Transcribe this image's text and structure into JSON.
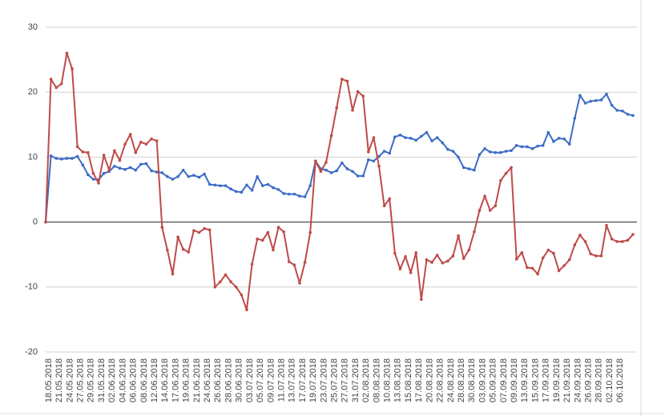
{
  "chart_data": {
    "type": "line",
    "categories": [
      "18.05.2018",
      null,
      "21.05.2018",
      null,
      "24.05.2018",
      null,
      "27.05.2018",
      null,
      "29.05.2018",
      null,
      "31.05.2018",
      null,
      "02.06.2018",
      null,
      "04.06.2018",
      null,
      "06.06.2018",
      null,
      "08.06.2018",
      null,
      "12.06.2018",
      null,
      "14.06.2018",
      null,
      "17.06.2018",
      null,
      "19.06.2018",
      null,
      "21.06.2018",
      null,
      "24.06.2018",
      null,
      "26.06.2018",
      null,
      "28.06.2018",
      null,
      "30.06.2018",
      null,
      "03.07.2018",
      null,
      "05.07.2018",
      null,
      "09.07.2018",
      null,
      "11.07.2018",
      null,
      "13.07.2018",
      null,
      "17.07.2018",
      null,
      "19.07.2018",
      null,
      "23.07.2018",
      null,
      "25.07.2018",
      null,
      "27.07.2018",
      null,
      "31.07.2018",
      null,
      "02.08.2018",
      null,
      "08.08.2018",
      null,
      "10.08.2018",
      null,
      "13.08.2018",
      null,
      "15.08.2018",
      null,
      "17.08.2018",
      null,
      "20.08.2018",
      null,
      "22.08.2018",
      null,
      "24.08.2018",
      null,
      "28.08.2018",
      null,
      "30.08.2018",
      null,
      "03.09.2018",
      null,
      "05.09.2018",
      null,
      "07.09.2018",
      null,
      "09.09.2018",
      null,
      "13.09.2018",
      null,
      "15.09.2018",
      null,
      "17.09.2018",
      null,
      "19.09.2018",
      null,
      "21.09.2018",
      null,
      "24.09.2018",
      null,
      "26.09.2018",
      null,
      "28.09.2018",
      null,
      "02.10.2018",
      null,
      "06.10.2018",
      null,
      null,
      null
    ],
    "series": [
      {
        "color": "#3d6bc5",
        "values": [
          0,
          10.2,
          9.8,
          9.7,
          9.8,
          9.8,
          10.1,
          8.8,
          7.3,
          6.6,
          6.5,
          7.5,
          7.8,
          8.6,
          8.3,
          8.1,
          8.4,
          8,
          8.9,
          9,
          7.9,
          7.7,
          7.6,
          7,
          6.6,
          7,
          8,
          7,
          7.2,
          6.9,
          7.4,
          5.8,
          5.7,
          5.6,
          5.6,
          5.1,
          4.7,
          4.6,
          5.7,
          4.9,
          7,
          5.6,
          5.8,
          5.3,
          5,
          4.4,
          4.3,
          4.3,
          4,
          3.9,
          5.6,
          9.4,
          8.2,
          8,
          7.6,
          7.9,
          9.1,
          8.2,
          7.8,
          7.1,
          7.1,
          9.6,
          9.4,
          10.1,
          10.9,
          10.6,
          13.1,
          13.4,
          13,
          12.9,
          12.6,
          13.2,
          13.8,
          12.5,
          13,
          12.2,
          11.2,
          10.9,
          10,
          8.4,
          8.2,
          8,
          10.4,
          11.3,
          10.8,
          10.7,
          10.7,
          10.9,
          11,
          11.8,
          11.6,
          11.6,
          11.3,
          11.7,
          11.8,
          13.8,
          12.4,
          12.9,
          12.8,
          12,
          16,
          19.5,
          18.3,
          18.6,
          18.7,
          18.8,
          19.7,
          18,
          17.2,
          17.1,
          16.6,
          16.4
        ]
      },
      {
        "color": "#be4b48",
        "values": [
          0,
          22,
          20.7,
          21.3,
          26,
          23.6,
          11.6,
          10.8,
          10.7,
          7.5,
          6,
          10.3,
          8,
          11,
          9.5,
          12,
          13.5,
          10.7,
          12.3,
          12,
          12.8,
          12.5,
          -0.8,
          -4.3,
          -8,
          -2.3,
          -4.2,
          -4.6,
          -1.3,
          -1.6,
          -1,
          -1.2,
          -10,
          -9.2,
          -8.1,
          -9.2,
          -10,
          -11.2,
          -13.5,
          -6.5,
          -2.6,
          -2.8,
          -1.6,
          -4.3,
          -0.8,
          -1.5,
          -6.1,
          -6.6,
          -9.4,
          -6.2,
          -1.6,
          9.4,
          7.8,
          9.2,
          13.3,
          17.6,
          22,
          21.7,
          17.2,
          20.1,
          19.4,
          10.8,
          13,
          8.6,
          2.5,
          3.6,
          -4.8,
          -7.2,
          -5.3,
          -7.8,
          -4.7,
          -11.9,
          -5.8,
          -6.2,
          -5.1,
          -6.3,
          -6,
          -5.2,
          -2.1,
          -5.6,
          -4.3,
          -1.5,
          1.8,
          4,
          1.8,
          2.5,
          6.4,
          7.5,
          8.4,
          -5.7,
          -4.7,
          -7,
          -7.1,
          -8,
          -5.5,
          -4.3,
          -4.8,
          -7.5,
          -6.7,
          -5.8,
          -3.5,
          -2,
          -3,
          -4.9,
          -5.2,
          -5.2,
          -0.5,
          -2.6,
          -3,
          -3,
          -2.8,
          -1.9
        ]
      }
    ],
    "ylim": [
      -20,
      30
    ],
    "yticks": [
      -20,
      -10,
      0,
      10,
      20,
      30
    ],
    "grid": true
  }
}
